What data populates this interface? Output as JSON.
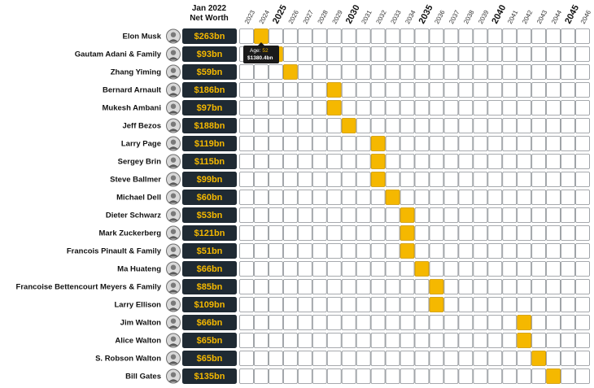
{
  "header": {
    "title_line1": "Jan 2022",
    "title_line2": "Net Worth"
  },
  "colors": {
    "accent": "#f5b800",
    "badge": "#1f2a33",
    "grid": "#ffffff",
    "cell_border": "#8a8f94"
  },
  "chart_data": {
    "type": "table",
    "columns": [
      "2023",
      "2024",
      "2025",
      "2026",
      "2027",
      "2028",
      "2029",
      "2030",
      "2031",
      "2032",
      "2033",
      "2034",
      "2035",
      "2036",
      "2037",
      "2038",
      "2039",
      "2040",
      "2041",
      "2042",
      "2043",
      "2044",
      "2045",
      "2046"
    ],
    "major_columns": [
      "2025",
      "2030",
      "2035",
      "2040",
      "2045"
    ],
    "rows": [
      {
        "name": "Elon Musk",
        "net_worth": "$263bn",
        "year": "2024"
      },
      {
        "name": "Gautam Adani & Family",
        "net_worth": "$93bn",
        "year": "2025"
      },
      {
        "name": "Zhang Yiming",
        "net_worth": "$59bn",
        "year": "2026"
      },
      {
        "name": "Bernard Arnault",
        "net_worth": "$186bn",
        "year": "2029"
      },
      {
        "name": "Mukesh Ambani",
        "net_worth": "$97bn",
        "year": "2029"
      },
      {
        "name": "Jeff Bezos",
        "net_worth": "$188bn",
        "year": "2030"
      },
      {
        "name": "Larry Page",
        "net_worth": "$119bn",
        "year": "2032"
      },
      {
        "name": "Sergey Brin",
        "net_worth": "$115bn",
        "year": "2032"
      },
      {
        "name": "Steve Ballmer",
        "net_worth": "$99bn",
        "year": "2032"
      },
      {
        "name": "Michael Dell",
        "net_worth": "$60bn",
        "year": "2033"
      },
      {
        "name": "Dieter Schwarz",
        "net_worth": "$53bn",
        "year": "2034"
      },
      {
        "name": "Mark Zuckerberg",
        "net_worth": "$121bn",
        "year": "2034"
      },
      {
        "name": "Francois Pinault & Family",
        "net_worth": "$51bn",
        "year": "2034"
      },
      {
        "name": "Ma Huateng",
        "net_worth": "$66bn",
        "year": "2035"
      },
      {
        "name": "Francoise Bettencourt Meyers & Family",
        "net_worth": "$85bn",
        "year": "2036"
      },
      {
        "name": "Larry Ellison",
        "net_worth": "$109bn",
        "year": "2036"
      },
      {
        "name": "Jim Walton",
        "net_worth": "$66bn",
        "year": "2042"
      },
      {
        "name": "Alice Walton",
        "net_worth": "$65bn",
        "year": "2042"
      },
      {
        "name": "S. Robson Walton",
        "net_worth": "$65bn",
        "year": "2043"
      },
      {
        "name": "Bill Gates",
        "net_worth": "$135bn",
        "year": "2044"
      }
    ],
    "tooltip": {
      "row": "Elon Musk",
      "age_label": "Age:",
      "age_value": "52",
      "value": "$1380.4bn"
    }
  }
}
